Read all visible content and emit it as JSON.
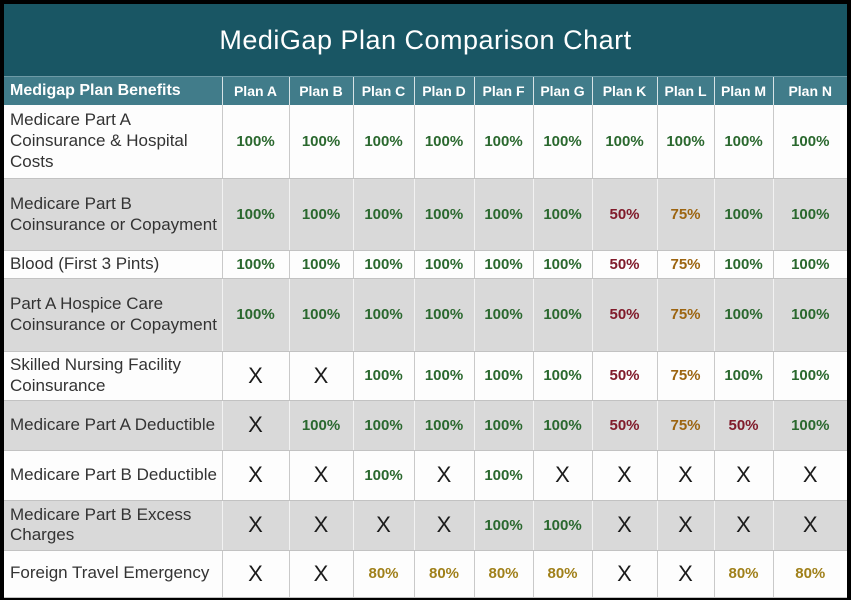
{
  "title": "MediGap Plan Comparison Chart",
  "colors": {
    "title_bar_bg": "#195664",
    "header_bg": "#417c8a",
    "header_text": "#ffffff",
    "row_alt_bg": "#d9d9d9",
    "green": "#2a682e",
    "maroon": "#801b2b",
    "orange": "#9c6410",
    "gold": "#a0801a",
    "x": "#1b1b1b"
  },
  "table": {
    "header": {
      "benefits_label": "Medigap Plan Benefits",
      "plans": [
        "Plan A",
        "Plan B",
        "Plan C",
        "Plan D",
        "Plan F",
        "Plan G",
        "Plan K",
        "Plan L",
        "Plan M",
        "Plan N"
      ]
    },
    "rows": [
      {
        "benefit": "Medicare Part A Coinsurance & Hospital Costs",
        "values": [
          {
            "text": "100%",
            "color": "green"
          },
          {
            "text": "100%",
            "color": "green"
          },
          {
            "text": "100%",
            "color": "green"
          },
          {
            "text": "100%",
            "color": "green"
          },
          {
            "text": "100%",
            "color": "green"
          },
          {
            "text": "100%",
            "color": "green"
          },
          {
            "text": "100%",
            "color": "green"
          },
          {
            "text": "100%",
            "color": "green"
          },
          {
            "text": "100%",
            "color": "green"
          },
          {
            "text": "100%",
            "color": "green"
          }
        ]
      },
      {
        "benefit": "Medicare Part B Coinsurance or Copayment",
        "values": [
          {
            "text": "100%",
            "color": "green"
          },
          {
            "text": "100%",
            "color": "green"
          },
          {
            "text": "100%",
            "color": "green"
          },
          {
            "text": "100%",
            "color": "green"
          },
          {
            "text": "100%",
            "color": "green"
          },
          {
            "text": "100%",
            "color": "green"
          },
          {
            "text": "50%",
            "color": "maroon"
          },
          {
            "text": "75%",
            "color": "orange"
          },
          {
            "text": "100%",
            "color": "green"
          },
          {
            "text": "100%",
            "color": "green"
          }
        ]
      },
      {
        "benefit": "Blood (First 3 Pints)",
        "values": [
          {
            "text": "100%",
            "color": "green"
          },
          {
            "text": "100%",
            "color": "green"
          },
          {
            "text": "100%",
            "color": "green"
          },
          {
            "text": "100%",
            "color": "green"
          },
          {
            "text": "100%",
            "color": "green"
          },
          {
            "text": "100%",
            "color": "green"
          },
          {
            "text": "50%",
            "color": "maroon"
          },
          {
            "text": "75%",
            "color": "orange"
          },
          {
            "text": "100%",
            "color": "green"
          },
          {
            "text": "100%",
            "color": "green"
          }
        ]
      },
      {
        "benefit": "Part A Hospice Care Coinsurance or Copayment",
        "values": [
          {
            "text": "100%",
            "color": "green"
          },
          {
            "text": "100%",
            "color": "green"
          },
          {
            "text": "100%",
            "color": "green"
          },
          {
            "text": "100%",
            "color": "green"
          },
          {
            "text": "100%",
            "color": "green"
          },
          {
            "text": "100%",
            "color": "green"
          },
          {
            "text": "50%",
            "color": "maroon"
          },
          {
            "text": "75%",
            "color": "orange"
          },
          {
            "text": "100%",
            "color": "green"
          },
          {
            "text": "100%",
            "color": "green"
          }
        ]
      },
      {
        "benefit": "Skilled Nursing Facility Coinsurance",
        "values": [
          {
            "text": "X",
            "color": "x"
          },
          {
            "text": "X",
            "color": "x"
          },
          {
            "text": "100%",
            "color": "green"
          },
          {
            "text": "100%",
            "color": "green"
          },
          {
            "text": "100%",
            "color": "green"
          },
          {
            "text": "100%",
            "color": "green"
          },
          {
            "text": "50%",
            "color": "maroon"
          },
          {
            "text": "75%",
            "color": "orange"
          },
          {
            "text": "100%",
            "color": "green"
          },
          {
            "text": "100%",
            "color": "green"
          }
        ]
      },
      {
        "benefit": "Medicare Part A Deductible",
        "values": [
          {
            "text": "X",
            "color": "x"
          },
          {
            "text": "100%",
            "color": "green"
          },
          {
            "text": "100%",
            "color": "green"
          },
          {
            "text": "100%",
            "color": "green"
          },
          {
            "text": "100%",
            "color": "green"
          },
          {
            "text": "100%",
            "color": "green"
          },
          {
            "text": "50%",
            "color": "maroon"
          },
          {
            "text": "75%",
            "color": "orange"
          },
          {
            "text": "50%",
            "color": "maroon"
          },
          {
            "text": "100%",
            "color": "green"
          }
        ]
      },
      {
        "benefit": "Medicare Part B Deductible",
        "values": [
          {
            "text": "X",
            "color": "x"
          },
          {
            "text": "X",
            "color": "x"
          },
          {
            "text": "100%",
            "color": "green"
          },
          {
            "text": "X",
            "color": "x"
          },
          {
            "text": "100%",
            "color": "green"
          },
          {
            "text": "X",
            "color": "x"
          },
          {
            "text": "X",
            "color": "x"
          },
          {
            "text": "X",
            "color": "x"
          },
          {
            "text": "X",
            "color": "x"
          },
          {
            "text": "X",
            "color": "x"
          }
        ]
      },
      {
        "benefit": "Medicare Part B Excess Charges",
        "values": [
          {
            "text": "X",
            "color": "x"
          },
          {
            "text": "X",
            "color": "x"
          },
          {
            "text": "X",
            "color": "x"
          },
          {
            "text": "X",
            "color": "x"
          },
          {
            "text": "100%",
            "color": "green"
          },
          {
            "text": "100%",
            "color": "green"
          },
          {
            "text": "X",
            "color": "x"
          },
          {
            "text": "X",
            "color": "x"
          },
          {
            "text": "X",
            "color": "x"
          },
          {
            "text": "X",
            "color": "x"
          }
        ]
      },
      {
        "benefit": "Foreign Travel Emergency",
        "values": [
          {
            "text": "X",
            "color": "x"
          },
          {
            "text": "X",
            "color": "x"
          },
          {
            "text": "80%",
            "color": "gold"
          },
          {
            "text": "80%",
            "color": "gold"
          },
          {
            "text": "80%",
            "color": "gold"
          },
          {
            "text": "80%",
            "color": "gold"
          },
          {
            "text": "X",
            "color": "x"
          },
          {
            "text": "X",
            "color": "x"
          },
          {
            "text": "80%",
            "color": "gold"
          },
          {
            "text": "80%",
            "color": "gold"
          }
        ]
      }
    ]
  },
  "chart_data": {
    "type": "table",
    "title": "MediGap Plan Comparison Chart",
    "columns": [
      "Medigap Plan Benefits",
      "Plan A",
      "Plan B",
      "Plan C",
      "Plan D",
      "Plan F",
      "Plan G",
      "Plan K",
      "Plan L",
      "Plan M",
      "Plan N"
    ],
    "rows": [
      [
        "Medicare Part A Coinsurance & Hospital Costs",
        "100%",
        "100%",
        "100%",
        "100%",
        "100%",
        "100%",
        "100%",
        "100%",
        "100%",
        "100%"
      ],
      [
        "Medicare Part B Coinsurance or Copayment",
        "100%",
        "100%",
        "100%",
        "100%",
        "100%",
        "100%",
        "50%",
        "75%",
        "100%",
        "100%"
      ],
      [
        "Blood (First 3 Pints)",
        "100%",
        "100%",
        "100%",
        "100%",
        "100%",
        "100%",
        "50%",
        "75%",
        "100%",
        "100%"
      ],
      [
        "Part A Hospice Care Coinsurance or Copayment",
        "100%",
        "100%",
        "100%",
        "100%",
        "100%",
        "100%",
        "50%",
        "75%",
        "100%",
        "100%"
      ],
      [
        "Skilled Nursing Facility Coinsurance",
        "X",
        "X",
        "100%",
        "100%",
        "100%",
        "100%",
        "50%",
        "75%",
        "100%",
        "100%"
      ],
      [
        "Medicare Part A Deductible",
        "X",
        "100%",
        "100%",
        "100%",
        "100%",
        "100%",
        "50%",
        "75%",
        "50%",
        "100%"
      ],
      [
        "Medicare Part B Deductible",
        "X",
        "X",
        "100%",
        "X",
        "100%",
        "X",
        "X",
        "X",
        "X",
        "X"
      ],
      [
        "Medicare Part B Excess Charges",
        "X",
        "X",
        "X",
        "X",
        "100%",
        "100%",
        "X",
        "X",
        "X",
        "X"
      ],
      [
        "Foreign Travel Emergency",
        "X",
        "X",
        "80%",
        "80%",
        "80%",
        "80%",
        "X",
        "X",
        "80%",
        "80%"
      ]
    ]
  }
}
